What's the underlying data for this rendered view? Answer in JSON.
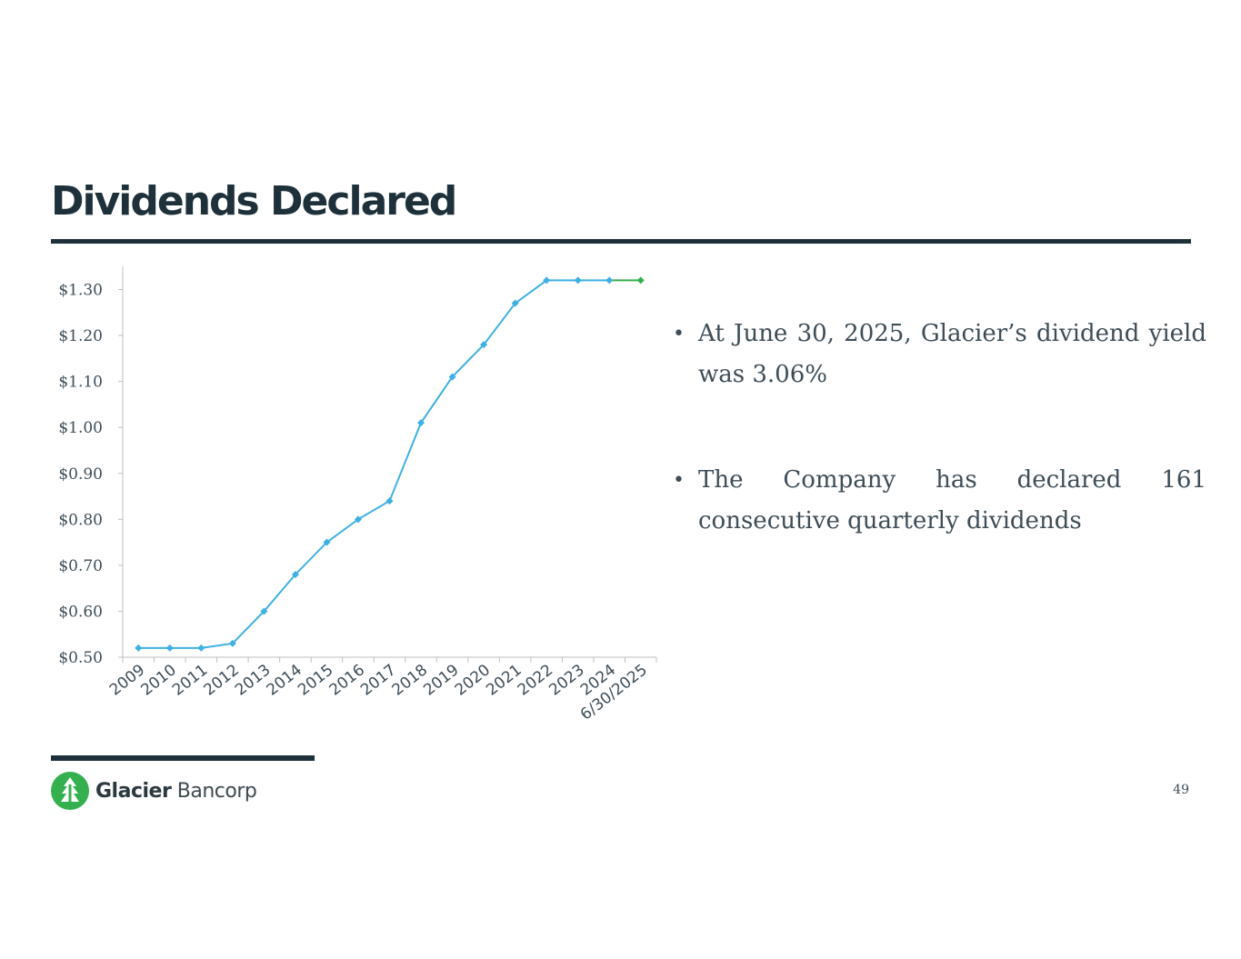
{
  "slide": {
    "title": "Dividends Declared",
    "bullets": [
      "At June 30, 2025, Glacier’s dividend yield was 3.06%",
      "The Company has declared 161 consecutive quarterly dividends"
    ],
    "company_bold": "Glacier",
    "company_light": " Bancorp",
    "page_number": "49"
  },
  "colors": {
    "dark": "#1e313a",
    "series": "#3fb0e3",
    "highlight": "#34b04e",
    "green_logo": "#34b04e"
  },
  "chart_data": {
    "type": "line",
    "title": "",
    "xlabel": "",
    "ylabel": "",
    "categories": [
      "2009",
      "2010",
      "2011",
      "2012",
      "2013",
      "2014",
      "2015",
      "2016",
      "2017",
      "2018",
      "2019",
      "2020",
      "2021",
      "2022",
      "2023",
      "2024",
      "6/30/2025"
    ],
    "values": [
      0.52,
      0.52,
      0.52,
      0.53,
      0.6,
      0.68,
      0.75,
      0.8,
      0.84,
      1.01,
      1.11,
      1.18,
      1.27,
      1.32,
      1.32,
      1.32,
      1.32
    ],
    "ylim": [
      0.5,
      1.35
    ],
    "yticks": [
      0.5,
      0.6,
      0.7,
      0.8,
      0.9,
      1.0,
      1.1,
      1.2,
      1.3
    ],
    "ytick_labels": [
      "$0.50",
      "$0.60",
      "$0.70",
      "$0.80",
      "$0.90",
      "$1.00",
      "$1.10",
      "$1.20",
      "$1.30"
    ],
    "highlight_last_segment": true,
    "grid": false,
    "legend": "none"
  }
}
